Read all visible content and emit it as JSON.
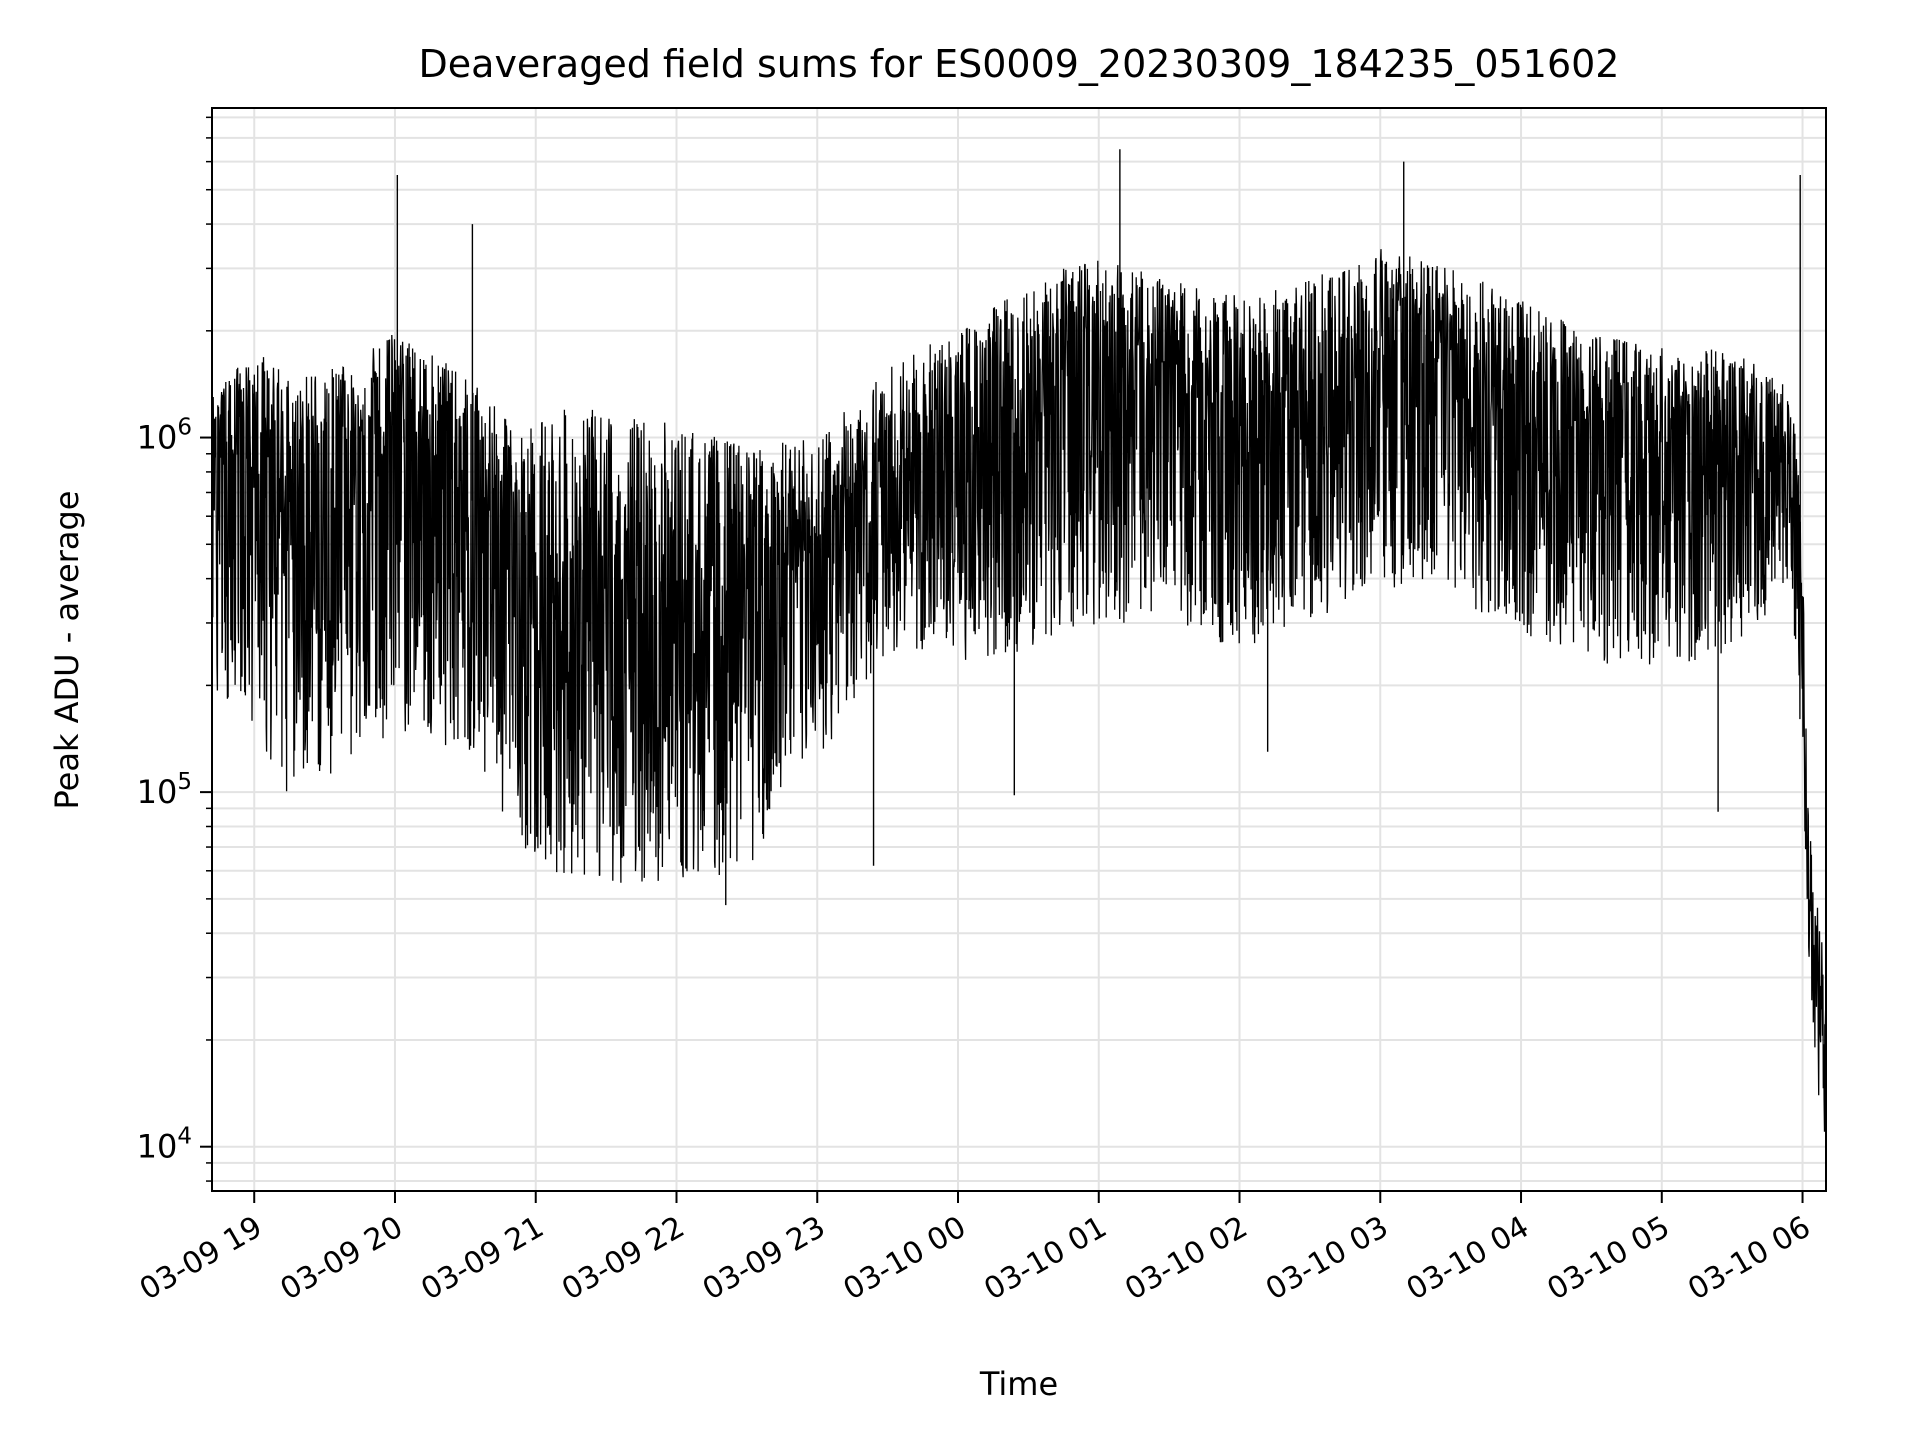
{
  "chart_data": {
    "type": "line",
    "title": "Deaveraged field sums for ES0009_20230309_184235_051602",
    "xlabel": "Time",
    "ylabel": "Peak ADU - average",
    "yscale": "log",
    "ylim": [
      7500,
      8500000
    ],
    "xlim": [
      "2023-03-09 18:42",
      "2023-03-10 06:10"
    ],
    "grid": true,
    "line_color": "#000000",
    "x_ticks": [
      {
        "label": "03-09 19",
        "time": "2023-03-09 19:00"
      },
      {
        "label": "03-09 20",
        "time": "2023-03-09 20:00"
      },
      {
        "label": "03-09 21",
        "time": "2023-03-09 21:00"
      },
      {
        "label": "03-09 22",
        "time": "2023-03-09 22:00"
      },
      {
        "label": "03-09 23",
        "time": "2023-03-09 23:00"
      },
      {
        "label": "03-10 00",
        "time": "2023-03-10 00:00"
      },
      {
        "label": "03-10 01",
        "time": "2023-03-10 01:00"
      },
      {
        "label": "03-10 02",
        "time": "2023-03-10 02:00"
      },
      {
        "label": "03-10 03",
        "time": "2023-03-10 03:00"
      },
      {
        "label": "03-10 04",
        "time": "2023-03-10 04:00"
      },
      {
        "label": "03-10 05",
        "time": "2023-03-10 05:00"
      },
      {
        "label": "03-10 06",
        "time": "2023-03-10 06:00"
      }
    ],
    "y_ticks": [
      {
        "mantissa": "10",
        "exp": "4",
        "value": 10000
      },
      {
        "mantissa": "10",
        "exp": "5",
        "value": 100000
      },
      {
        "mantissa": "10",
        "exp": "6",
        "value": 1000000
      }
    ],
    "series": [
      {
        "envelope": [
          {
            "time": "2023-03-09 18:42",
            "low": 190000,
            "high": 1300000,
            "mid": 800000
          },
          {
            "time": "2023-03-09 19:00",
            "low": 150000,
            "high": 1800000,
            "mid": 700000
          },
          {
            "time": "2023-03-09 19:15",
            "low": 95000,
            "high": 1500000,
            "mid": 600000
          },
          {
            "time": "2023-03-09 19:40",
            "low": 120000,
            "high": 1600000,
            "mid": 750000
          },
          {
            "time": "2023-03-09 20:00",
            "low": 150000,
            "high": 2000000,
            "mid": 900000
          },
          {
            "time": "2023-03-09 20:30",
            "low": 130000,
            "high": 1500000,
            "mid": 700000
          },
          {
            "time": "2023-03-09 20:55",
            "low": 70000,
            "high": 1000000,
            "mid": 450000
          },
          {
            "time": "2023-03-09 21:00",
            "low": 60000,
            "high": 1200000,
            "mid": 300000
          },
          {
            "time": "2023-03-09 21:30",
            "low": 55000,
            "high": 1200000,
            "mid": 250000
          },
          {
            "time": "2023-03-09 22:00",
            "low": 55000,
            "high": 1100000,
            "mid": 250000
          },
          {
            "time": "2023-03-09 22:30",
            "low": 60000,
            "high": 950000,
            "mid": 320000
          },
          {
            "time": "2023-03-09 23:00",
            "low": 120000,
            "high": 1000000,
            "mid": 450000
          },
          {
            "time": "2023-03-09 23:30",
            "low": 250000,
            "high": 1600000,
            "mid": 700000
          },
          {
            "time": "2023-03-10 00:00",
            "low": 230000,
            "high": 2000000,
            "mid": 800000
          },
          {
            "time": "2023-03-10 00:30",
            "low": 250000,
            "high": 2800000,
            "mid": 1100000
          },
          {
            "time": "2023-03-10 01:00",
            "low": 300000,
            "high": 3200000,
            "mid": 1400000
          },
          {
            "time": "2023-03-10 01:30",
            "low": 300000,
            "high": 2800000,
            "mid": 1200000
          },
          {
            "time": "2023-03-10 02:00",
            "low": 250000,
            "high": 2500000,
            "mid": 1000000
          },
          {
            "time": "2023-03-10 02:30",
            "low": 300000,
            "high": 2800000,
            "mid": 1100000
          },
          {
            "time": "2023-03-10 03:00",
            "low": 350000,
            "high": 3500000,
            "mid": 1500000
          },
          {
            "time": "2023-03-10 03:30",
            "low": 330000,
            "high": 3000000,
            "mid": 1300000
          },
          {
            "time": "2023-03-10 04:00",
            "low": 280000,
            "high": 2500000,
            "mid": 1100000
          },
          {
            "time": "2023-03-10 04:30",
            "low": 230000,
            "high": 2000000,
            "mid": 900000
          },
          {
            "time": "2023-03-10 05:00",
            "low": 220000,
            "high": 1800000,
            "mid": 800000
          },
          {
            "time": "2023-03-10 05:30",
            "low": 230000,
            "high": 1800000,
            "mid": 800000
          },
          {
            "time": "2023-03-10 05:55",
            "low": 400000,
            "high": 1400000,
            "mid": 900000
          },
          {
            "time": "2023-03-10 06:00",
            "low": 120000,
            "high": 600000,
            "mid": 300000
          },
          {
            "time": "2023-03-10 06:03",
            "low": 30000,
            "high": 80000,
            "mid": 45000
          },
          {
            "time": "2023-03-10 06:06",
            "low": 15000,
            "high": 50000,
            "mid": 30000
          },
          {
            "time": "2023-03-10 06:10",
            "low": 10000,
            "high": 30000,
            "mid": 18000
          }
        ],
        "spikes": [
          {
            "time": "2023-03-09 20:01",
            "value": 5500000
          },
          {
            "time": "2023-03-09 20:33",
            "value": 4000000
          },
          {
            "time": "2023-03-09 22:21",
            "value": 48000
          },
          {
            "time": "2023-03-09 23:24",
            "value": 62000
          },
          {
            "time": "2023-03-10 00:24",
            "value": 98000
          },
          {
            "time": "2023-03-10 01:09",
            "value": 6500000
          },
          {
            "time": "2023-03-10 02:12",
            "value": 130000
          },
          {
            "time": "2023-03-10 03:10",
            "value": 6000000
          },
          {
            "time": "2023-03-10 05:24",
            "value": 88000
          },
          {
            "time": "2023-03-10 05:59",
            "value": 5500000
          }
        ]
      }
    ]
  }
}
